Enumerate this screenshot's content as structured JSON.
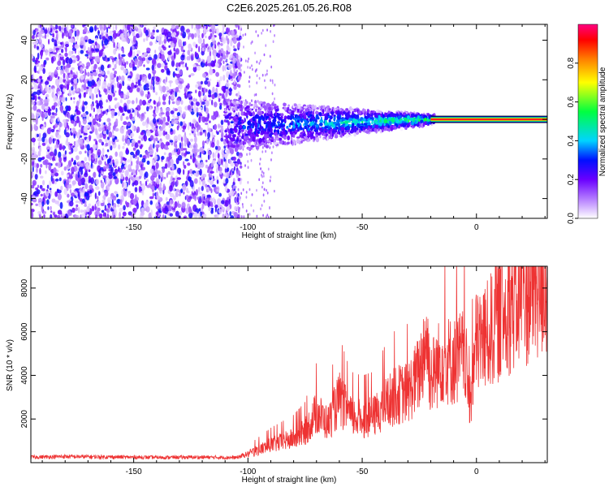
{
  "title": "C2E6.2025.261.05.26.R08",
  "chart_data": [
    {
      "type": "heatmap",
      "title": "C2E6.2025.261.05.26.R08",
      "xlabel": "Height of straight line (km)",
      "ylabel": "Frequency (Hz)",
      "xlim": [
        -195,
        31
      ],
      "ylim": [
        -50,
        48
      ],
      "xticks": [
        -150,
        -100,
        -50,
        0
      ],
      "xtick_labels": [
        "-150",
        "-100",
        "-50",
        "0"
      ],
      "yticks": [
        -40,
        -20,
        0,
        20,
        40
      ],
      "ytick_labels": [
        "-40",
        "-20",
        "0",
        "20",
        "40"
      ],
      "colorbar": {
        "label": "Normalized spectral amplitude",
        "range": [
          0.0,
          1.0
        ],
        "ticks": [
          0.0,
          0.2,
          0.4,
          0.6,
          0.8
        ],
        "tick_labels": [
          "0.0",
          "0.2",
          "0.4",
          "0.6",
          "0.8"
        ]
      },
      "features": {
        "noise_region_x": [
          -195,
          -105
        ],
        "signal_band_start_x": -110,
        "strong_tone_start_x": -20,
        "tone_frequency": 0
      }
    },
    {
      "type": "line",
      "xlabel": "Height of straight line (km)",
      "ylabel": "SNR (10 * v/v)",
      "xlim": [
        -195,
        31
      ],
      "ylim": [
        0,
        9000
      ],
      "xticks": [
        -150,
        -100,
        -50,
        0
      ],
      "xtick_labels": [
        "-150",
        "-100",
        "-50",
        "0"
      ],
      "yticks": [
        2000,
        4000,
        6000,
        8000
      ],
      "ytick_labels": [
        "2000",
        "4000",
        "6000",
        "8000"
      ],
      "series": [
        {
          "name": "SNR",
          "color": "#ee3333",
          "x": [
            -195,
            -180,
            -160,
            -140,
            -120,
            -105,
            -100,
            -90,
            -80,
            -75,
            -70,
            -65,
            -60,
            -55,
            -50,
            -45,
            -40,
            -35,
            -30,
            -25,
            -22,
            -20,
            -15,
            -10,
            -5,
            -3,
            0,
            5,
            10,
            15,
            20,
            25,
            31
          ],
          "y": [
            250,
            280,
            260,
            240,
            250,
            230,
            400,
            800,
            1100,
            1400,
            2300,
            1800,
            2900,
            2100,
            2000,
            2100,
            2700,
            3100,
            3200,
            4100,
            5800,
            3900,
            4800,
            4600,
            5000,
            2500,
            5600,
            5800,
            6700,
            7300,
            7700,
            8100,
            8500
          ]
        }
      ]
    }
  ]
}
